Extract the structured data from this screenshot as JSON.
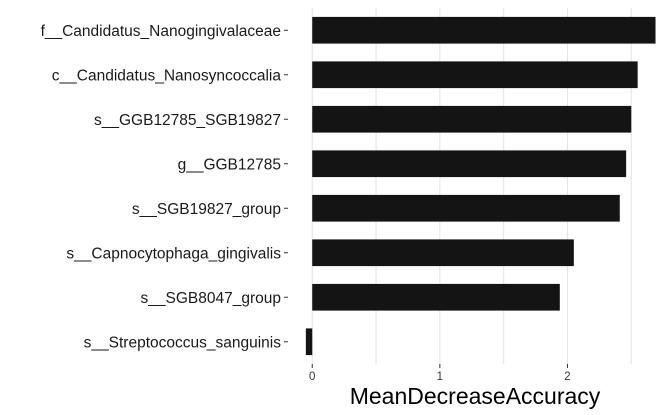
{
  "chart_data": {
    "type": "bar",
    "orientation": "horizontal",
    "categories": [
      "f__Candidatus_Nanogingivalaceae",
      "c__Candidatus_Nanosyncoccalia",
      "s__GGB12785_SGB19827",
      "g__GGB12785",
      "s__SGB19827_group",
      "s__Capnocytophaga_gingivalis",
      "s__SGB8047_group",
      "s__Streptococcus_sanguinis"
    ],
    "values": [
      2.69,
      2.55,
      2.5,
      2.46,
      2.41,
      2.05,
      1.94,
      -0.05
    ],
    "xlabel": "MeanDecreaseAccuracy",
    "ylabel": "",
    "title": "",
    "xlim": [
      -0.19,
      2.78
    ],
    "xticks": [
      0,
      1,
      2
    ],
    "grid": "vertical",
    "legend": "none",
    "bar_color": "#141414"
  }
}
